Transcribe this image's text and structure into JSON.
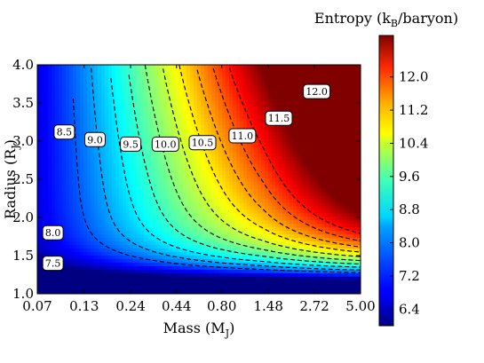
{
  "chart_data": {
    "type": "heatmap",
    "xlabel_main": "Mass (M",
    "xlabel_sub": "J",
    "xlabel_tail": ")",
    "ylabel_main": "Radius (R",
    "ylabel_sub": "J",
    "ylabel_tail": ")",
    "colorbar_label_main": "Entropy (k",
    "colorbar_label_sub": "B",
    "colorbar_label_tail": "/baryon)",
    "x_scale": "log",
    "xlim": [
      0.07,
      5.0
    ],
    "ylim": [
      1.0,
      4.0
    ],
    "x_ticks": [
      0.07,
      0.13,
      0.24,
      0.44,
      0.8,
      1.48,
      2.72,
      5.0
    ],
    "x_tick_labels": [
      "0.07",
      "0.13",
      "0.24",
      "0.44",
      "0.80",
      "1.48",
      "2.72",
      "5.00"
    ],
    "y_ticks": [
      1.0,
      1.5,
      2.0,
      2.5,
      3.0,
      3.5,
      4.0
    ],
    "y_tick_labels": [
      "1.0",
      "1.5",
      "2.0",
      "2.5",
      "3.0",
      "3.5",
      "4.0"
    ],
    "colorbar_range": [
      6.0,
      13.0
    ],
    "colorbar_ticks": [
      6.4,
      7.2,
      8.0,
      8.8,
      9.6,
      10.4,
      11.2,
      12.0
    ],
    "colorbar_tick_labels": [
      "6.4",
      "7.2",
      "8.0",
      "8.8",
      "9.6",
      "10.4",
      "11.2",
      "12.0"
    ],
    "colormap": "jet",
    "contour_levels": [
      7.5,
      8.0,
      8.5,
      9.0,
      9.5,
      10.0,
      10.5,
      11.0,
      11.5,
      12.0
    ],
    "contour_label_texts": [
      "7.5",
      "8.0",
      "8.5",
      "9.0",
      "9.5",
      "10.0",
      "10.5",
      "11.0",
      "11.5",
      "12.0"
    ],
    "contour_labels": [
      {
        "text": "7.5",
        "mass": 0.086,
        "radius": 1.4
      },
      {
        "text": "8.0",
        "mass": 0.086,
        "radius": 1.8
      },
      {
        "text": "8.5",
        "mass": 0.1,
        "radius": 3.12
      },
      {
        "text": "9.0",
        "mass": 0.15,
        "radius": 3.02
      },
      {
        "text": "9.5",
        "mass": 0.24,
        "radius": 2.96
      },
      {
        "text": "10.0",
        "mass": 0.38,
        "radius": 2.96
      },
      {
        "text": "10.5",
        "mass": 0.62,
        "radius": 2.98
      },
      {
        "text": "11.0",
        "mass": 1.05,
        "radius": 3.07
      },
      {
        "text": "11.5",
        "mass": 1.7,
        "radius": 3.3
      },
      {
        "text": "12.0",
        "mass": 2.8,
        "radius": 3.65
      }
    ]
  }
}
